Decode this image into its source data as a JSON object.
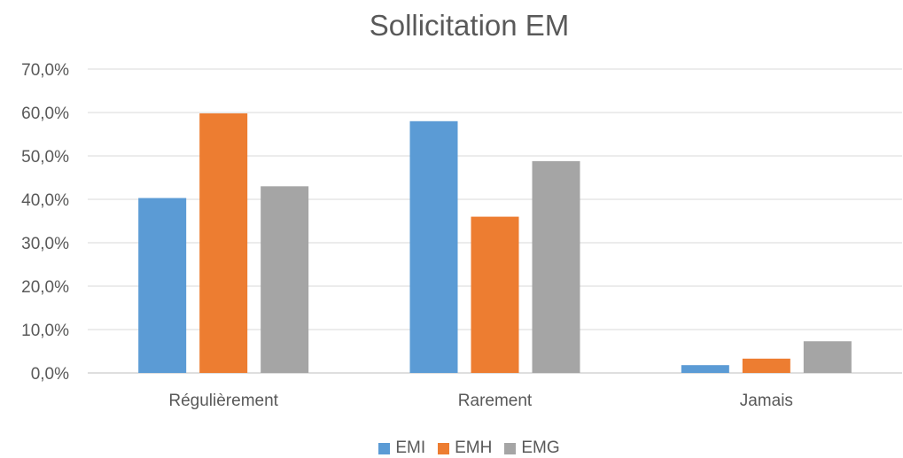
{
  "chart_data": {
    "type": "bar",
    "title": "Sollicitation EM",
    "xlabel": "",
    "ylabel": "",
    "categories": [
      "Régulièrement",
      "Rarement",
      "Jamais"
    ],
    "series": [
      {
        "name": "EMI",
        "color": "#5B9BD5",
        "values": [
          40.3,
          58.0,
          1.8
        ]
      },
      {
        "name": "EMH",
        "color": "#ED7D31",
        "values": [
          59.8,
          36.0,
          3.3
        ]
      },
      {
        "name": "EMG",
        "color": "#A5A5A5",
        "values": [
          43.0,
          48.8,
          7.3
        ]
      }
    ],
    "ylim": [
      0,
      70
    ],
    "yticks": [
      "0,0%",
      "10,0%",
      "20,0%",
      "30,0%",
      "40,0%",
      "50,0%",
      "60,0%",
      "70,0%"
    ],
    "grid": true,
    "legend_position": "bottom"
  }
}
